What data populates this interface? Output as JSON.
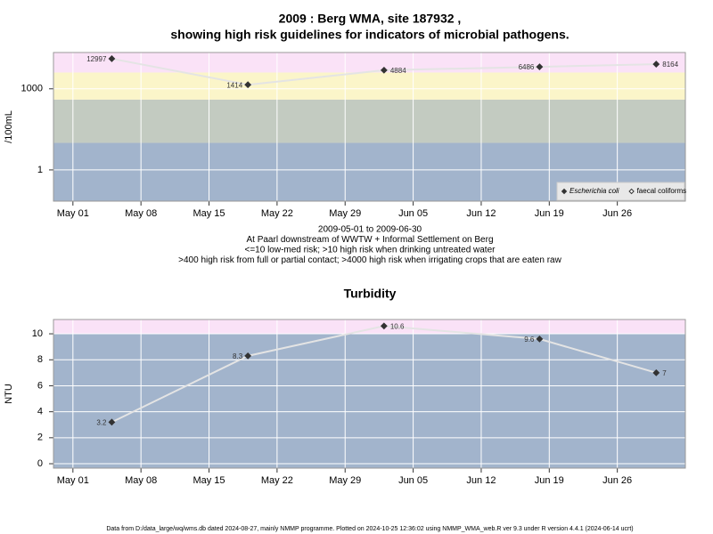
{
  "footer": "Data from D:/data_large/wq/wms.db dated 2024-08-27, mainly NMMP programme. Plotted on 2024-10-25 12:36:02 using NMMP_WMA_web.R ver 9.3 under R version 4.4.1 (2024-06-14 ucrt)",
  "chart_data": [
    {
      "type": "line",
      "title": [
        "2009 : Berg WMA, site 187932 ,",
        "showing high risk guidelines for indicators of microbial pathogens."
      ],
      "y_label": "/100mL",
      "notes": [
        "2009-05-01 to 2009-06-30",
        "At Paarl downstream of WWTW + Informal Settlement on Berg",
        "<=10 low-med risk; >10 high risk when drinking untreated water",
        ">400 high risk from full or partial contact; >4000 high risk when irrigating crops that are eaten raw"
      ],
      "x": [
        "05-05",
        "05-19",
        "06-02",
        "06-18",
        "06-30"
      ],
      "series": [
        {
          "name": "Escherichia coli",
          "color": "#333333",
          "marker": "filled",
          "values": [
            12997,
            1414,
            4884,
            6486,
            8164
          ]
        },
        {
          "name": "faecal coliforms",
          "color": "#333333",
          "marker": "open",
          "values": [
            null,
            null,
            null,
            null,
            null
          ]
        }
      ],
      "line_color": "#e4e4e4",
      "xlim": [
        "04-29",
        "07-03"
      ],
      "xticks": [
        {
          "value": "05-01",
          "label": "May 01"
        },
        {
          "value": "05-08",
          "label": "May 08"
        },
        {
          "value": "05-15",
          "label": "May 15"
        },
        {
          "value": "05-22",
          "label": "May 22"
        },
        {
          "value": "05-29",
          "label": "May 29"
        },
        {
          "value": "06-05",
          "label": "Jun 05"
        },
        {
          "value": "06-12",
          "label": "Jun 12"
        },
        {
          "value": "06-19",
          "label": "Jun 19"
        },
        {
          "value": "06-26",
          "label": "Jun 26"
        }
      ],
      "ylog": true,
      "ylim": [
        0.07,
        22000
      ],
      "yticks": [
        1,
        1000
      ],
      "grid": true,
      "legend": "bottom-right",
      "bands": [
        {
          "min": 0.07,
          "max": 10,
          "color": "#a2b4cc"
        },
        {
          "min": 10,
          "max": 400,
          "color": "#c3cbc1"
        },
        {
          "min": 400,
          "max": 4000,
          "color": "#fbf5c9"
        },
        {
          "min": 4000,
          "max": 22000,
          "color": "#fae2f7"
        }
      ]
    },
    {
      "type": "line",
      "title": [
        "Turbidity"
      ],
      "y_label": "NTU",
      "x": [
        "05-05",
        "05-19",
        "06-02",
        "06-18",
        "06-30"
      ],
      "values": [
        3.2,
        8.3,
        10.6,
        9.6,
        7
      ],
      "color": "#333333",
      "line_color": "#e4e4e4",
      "xlim": [
        "04-29",
        "07-03"
      ],
      "xticks": [
        {
          "value": "05-01",
          "label": "May 01"
        },
        {
          "value": "05-08",
          "label": "May 08"
        },
        {
          "value": "05-15",
          "label": "May 15"
        },
        {
          "value": "05-22",
          "label": "May 22"
        },
        {
          "value": "05-29",
          "label": "May 29"
        },
        {
          "value": "06-05",
          "label": "Jun 05"
        },
        {
          "value": "06-12",
          "label": "Jun 12"
        },
        {
          "value": "06-19",
          "label": "Jun 19"
        },
        {
          "value": "06-26",
          "label": "Jun 26"
        }
      ],
      "ylog": false,
      "ylim": [
        -0.34,
        11.1
      ],
      "yticks": [
        0,
        2,
        4,
        6,
        8,
        10
      ],
      "grid": true,
      "bands": [
        {
          "min": -0.34,
          "max": 10,
          "color": "#a2b4cc"
        },
        {
          "min": 10,
          "max": 11.1,
          "color": "#fae2f7"
        }
      ]
    }
  ]
}
